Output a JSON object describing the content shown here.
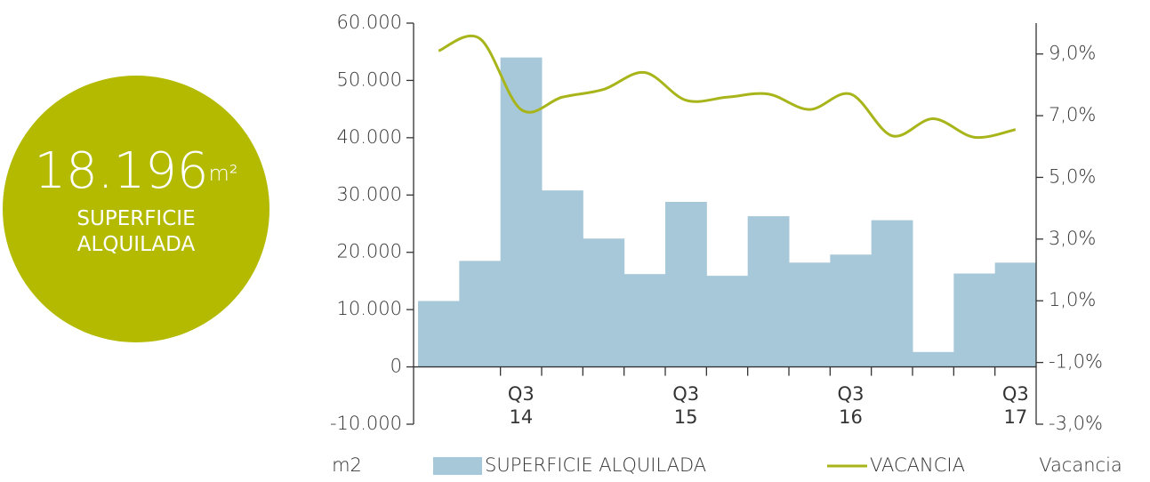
{
  "badge": {
    "value": "18.196",
    "unit": "m²",
    "label": "SUPERFICIE\nALQUILADA"
  },
  "chart_data": {
    "type": "bar",
    "categories": [
      null,
      null,
      "Q3\n14",
      null,
      null,
      null,
      "Q3\n15",
      null,
      null,
      null,
      "Q3\n16",
      null,
      null,
      null,
      "Q3\n17"
    ],
    "series": [
      {
        "name": "SUPERFICIE ALQUILADA",
        "color": "#a7c8d8",
        "type": "bar",
        "values": [
          11500,
          18500,
          54000,
          30800,
          22400,
          16200,
          28800,
          15900,
          26300,
          18200,
          19600,
          25600,
          2600,
          16300,
          18196
        ]
      },
      {
        "name": "VACANCIA",
        "color": "#a8b51a",
        "type": "line",
        "axis": "y2",
        "values": [
          9.1,
          9.5,
          7.2,
          7.6,
          7.85,
          8.4,
          7.5,
          7.6,
          7.7,
          7.2,
          7.7,
          6.35,
          6.9,
          6.3,
          6.55
        ]
      }
    ],
    "ylabel": "m2",
    "y2label": "Vacancia",
    "ylim": [
      -10000,
      60000
    ],
    "yticks": [
      {
        "value": -10000,
        "label": "-10.000"
      },
      0,
      {
        "value": 10000,
        "label": "10.000"
      },
      {
        "value": 20000,
        "label": "20.000"
      },
      {
        "value": 30000,
        "label": "30.000"
      },
      {
        "value": 40000,
        "label": "40.000"
      },
      {
        "value": 50000,
        "label": "50.000"
      },
      {
        "value": 60000,
        "label": "60.000"
      }
    ],
    "y2lim": [
      -3,
      10
    ],
    "y2ticks": [
      {
        "value": -3,
        "label": "-3,0%"
      },
      {
        "value": -1,
        "label": "-1,0%"
      },
      {
        "value": 1,
        "label": "1,0%"
      },
      {
        "value": 3,
        "label": "3,0%"
      },
      {
        "value": 5,
        "label": "5,0%"
      },
      {
        "value": 7,
        "label": "7,0%"
      },
      {
        "value": 9,
        "label": "9,0%"
      }
    ]
  }
}
